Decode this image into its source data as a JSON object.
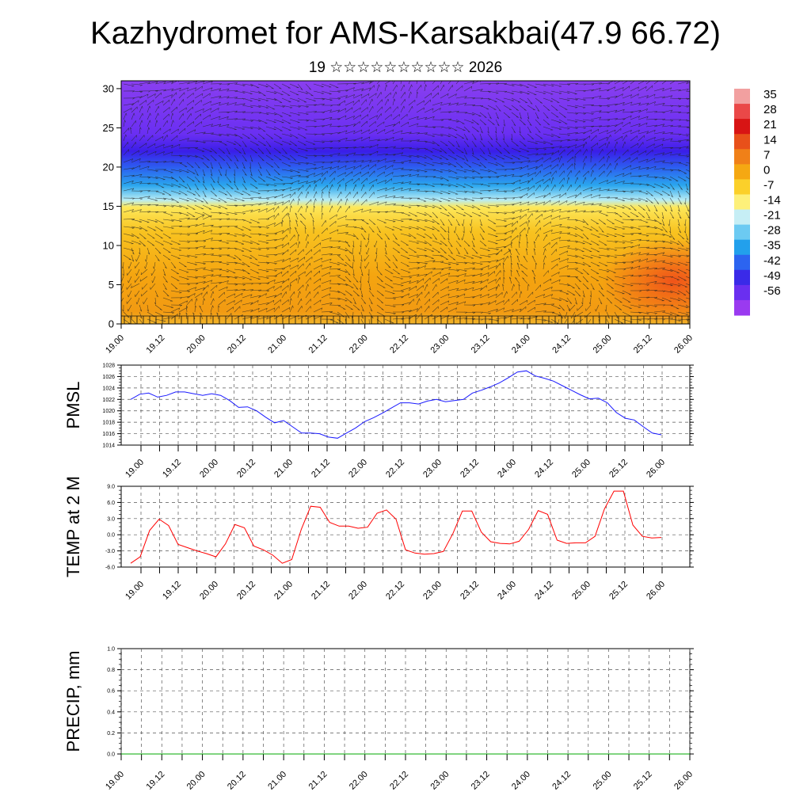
{
  "title": "Kazhydromet for AMS-Karsakbai(47.9 66.72)",
  "subtitle": "19 ☆☆☆☆☆☆☆☆☆☆ 2026",
  "chart_data": [
    {
      "type": "heatmap",
      "name": "upper-air temperature and wind cross-section",
      "x_labels": [
        "19.00",
        "19.12",
        "20.00",
        "20.12",
        "21.00",
        "21.12",
        "22.00",
        "22.12",
        "23.00",
        "23.12",
        "24.00",
        "24.12",
        "25.00",
        "25.12",
        "26.00"
      ],
      "y_ticks": [
        0,
        5,
        10,
        15,
        20,
        25,
        30
      ],
      "ylim": [
        0,
        31
      ],
      "grid": false,
      "colorbar": {
        "labels": [
          "35",
          "28",
          "21",
          "14",
          "7",
          "0",
          "-7",
          "-14",
          "-21",
          "-28",
          "-35",
          "-42",
          "-49",
          "-56"
        ],
        "placement": "right"
      }
    },
    {
      "type": "line",
      "ylabel": "PMSL",
      "x_labels": [
        "19.00",
        "19.12",
        "20.00",
        "20.12",
        "21.00",
        "21.12",
        "22.00",
        "22.12",
        "23.00",
        "23.12",
        "24.00",
        "24.12",
        "25.00",
        "25.12",
        "26.00"
      ],
      "y_ticks": [
        "1014",
        "1016",
        "1018",
        "1020",
        "1022",
        "1024",
        "1026",
        "1028"
      ],
      "ylim": [
        1014,
        1028
      ],
      "grid": true,
      "color": "#1a1aff",
      "values": [
        1022.0,
        1022.9,
        1023.1,
        1022.4,
        1022.7,
        1023.3,
        1023.3,
        1023.0,
        1022.7,
        1023.0,
        1022.7,
        1021.8,
        1020.6,
        1020.7,
        1020.0,
        1018.9,
        1017.9,
        1018.3,
        1017.2,
        1016.1,
        1016.1,
        1016.0,
        1015.4,
        1015.2,
        1016.1,
        1017.0,
        1018.1,
        1018.8,
        1019.6,
        1020.5,
        1021.4,
        1021.4,
        1021.2,
        1021.7,
        1022.0,
        1021.6,
        1021.8,
        1022.0,
        1023.1,
        1023.6,
        1024.2,
        1024.9,
        1025.8,
        1026.8,
        1027.0,
        1026.1,
        1025.7,
        1025.2,
        1024.4,
        1023.6,
        1022.8,
        1022.1,
        1022.2,
        1021.4,
        1019.7,
        1018.7,
        1018.4,
        1017.2,
        1016.1,
        1015.8
      ]
    },
    {
      "type": "line",
      "ylabel": "TEMP at 2 M",
      "x_labels": [
        "19.00",
        "19.12",
        "20.00",
        "20.12",
        "21.00",
        "21.12",
        "22.00",
        "22.12",
        "23.00",
        "23.12",
        "24.00",
        "24.12",
        "25.00",
        "25.12",
        "26.00"
      ],
      "y_ticks": [
        "-6.0",
        "-3.0",
        "0.0",
        "3.0",
        "6.0",
        "9.0"
      ],
      "ylim": [
        -6,
        9
      ],
      "grid": true,
      "color": "#ff0000",
      "values": [
        -5.3,
        -4.1,
        0.8,
        2.9,
        1.7,
        -1.8,
        -2.4,
        -3.0,
        -3.5,
        -4.1,
        -1.7,
        1.9,
        1.3,
        -2.1,
        -2.8,
        -3.8,
        -5.3,
        -4.6,
        1.0,
        5.3,
        5.1,
        2.3,
        1.6,
        1.6,
        1.2,
        1.4,
        4.0,
        4.6,
        2.9,
        -2.8,
        -3.4,
        -3.6,
        -3.5,
        -3.1,
        0.2,
        4.4,
        4.4,
        0.5,
        -1.3,
        -1.6,
        -1.7,
        -1.2,
        1.0,
        4.5,
        3.8,
        -1.0,
        -1.6,
        -1.5,
        -1.5,
        -0.3,
        4.8,
        8.1,
        8.1,
        1.8,
        -0.3,
        -0.6,
        -0.5
      ]
    },
    {
      "type": "line",
      "ylabel": "PRECIP, mm",
      "x_labels": [
        "19.00",
        "19.12",
        "20.00",
        "20.12",
        "21.00",
        "21.12",
        "22.00",
        "22.12",
        "23.00",
        "23.12",
        "24.00",
        "24.12",
        "25.00",
        "25.12",
        "26.00"
      ],
      "y_ticks": [
        "0.0",
        "0.2",
        "0.4",
        "0.6",
        "0.8",
        "1.0"
      ],
      "ylim": [
        0,
        1
      ],
      "grid": true,
      "color": "#00aa00",
      "values": [
        0,
        0,
        0,
        0,
        0,
        0,
        0,
        0,
        0,
        0,
        0,
        0,
        0,
        0,
        0,
        0,
        0,
        0,
        0,
        0,
        0,
        0,
        0,
        0,
        0,
        0,
        0,
        0,
        0,
        0,
        0,
        0,
        0,
        0,
        0,
        0,
        0,
        0,
        0,
        0,
        0,
        0,
        0,
        0,
        0,
        0,
        0,
        0,
        0,
        0,
        0,
        0,
        0,
        0,
        0,
        0,
        0,
        0,
        0
      ]
    }
  ]
}
